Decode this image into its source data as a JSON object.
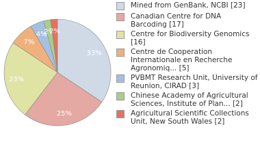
{
  "chart_data": {
    "type": "pie",
    "categories": [
      "Mined from GenBank, NCBI [23]",
      "Canadian Centre for DNA Barcoding [17]",
      "Centre for Biodiversity Genomics [16]",
      "Centre de Cooperation Internationale en Recherche Agronomiq... [5]",
      "PVBMT Research Unit, University of Reunion, CIRAD [3]",
      "Chinese Academy of Agricultural Sciences, Institute of Plan... [2]",
      "Agricultural Scientific Collections Unit, New South Wales [2]"
    ],
    "values": [
      33,
      25,
      23,
      7,
      4,
      2,
      2
    ],
    "value_labels": [
      "33%",
      "25%",
      "23%",
      "7%",
      "4%",
      "2%",
      "2%"
    ],
    "colors": [
      "#d0dae7",
      "#e3a9a2",
      "#dfe3a3",
      "#f0b07c",
      "#a6c0e2",
      "#a9cf86",
      "#e2735f"
    ],
    "legend": "right"
  }
}
